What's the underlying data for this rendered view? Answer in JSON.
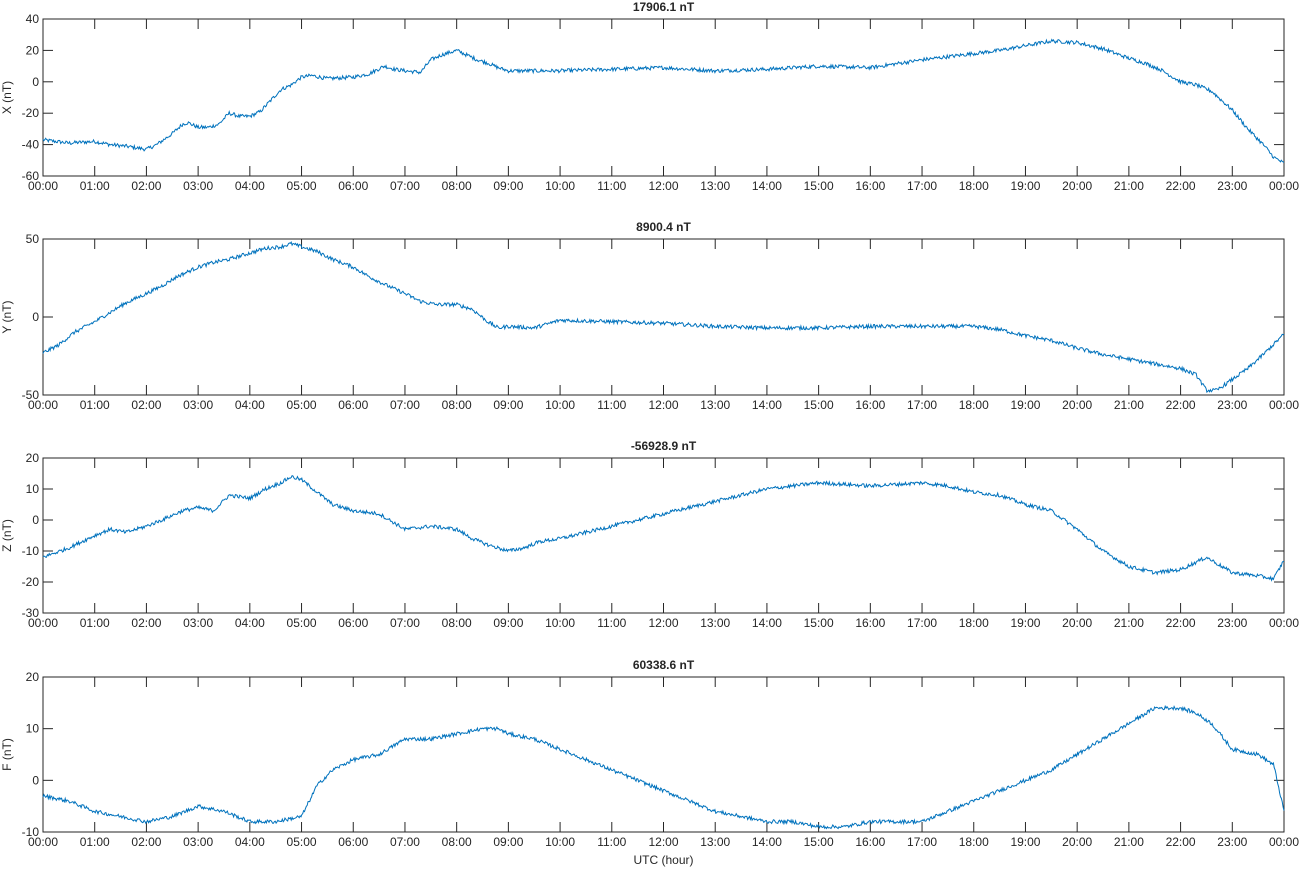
{
  "chart_data": [
    {
      "type": "line",
      "title": "17906.1 nT",
      "ylabel": "X (nT)",
      "xlabel": "",
      "ylim": [
        -60,
        40
      ],
      "yticks": [
        -60,
        -40,
        -20,
        0,
        20,
        40
      ],
      "xlim": [
        0,
        24
      ],
      "xticks": [
        "00:00",
        "01:00",
        "02:00",
        "03:00",
        "04:00",
        "05:00",
        "06:00",
        "07:00",
        "08:00",
        "09:00",
        "10:00",
        "11:00",
        "12:00",
        "13:00",
        "14:00",
        "15:00",
        "16:00",
        "17:00",
        "18:00",
        "19:00",
        "20:00",
        "21:00",
        "22:00",
        "23:00",
        "00:00"
      ],
      "grid": false,
      "color": "#0072bd",
      "series": [
        {
          "x": [
            0,
            0.5,
            1,
            1.3,
            1.6,
            2,
            2.2,
            2.5,
            2.7,
            2.8,
            3,
            3.2,
            3.4,
            3.6,
            3.8,
            4,
            4.2,
            4.4,
            4.6,
            4.8,
            5,
            5.2,
            5.5,
            6,
            6.3,
            6.6,
            6.8,
            7,
            7.3,
            7.5,
            7.7,
            8,
            8.2,
            8.4,
            8.6,
            8.8,
            9,
            9.5,
            10,
            11,
            12,
            13,
            14,
            15,
            16,
            17,
            18,
            18.5,
            19,
            19.5,
            20,
            20.5,
            21,
            21.3,
            21.6,
            22,
            22.3,
            22.6,
            23,
            23.3,
            23.6,
            23.8,
            24
          ],
          "y": [
            -37,
            -39,
            -38,
            -40,
            -41,
            -43,
            -40,
            -33,
            -27,
            -26,
            -29,
            -29,
            -27,
            -20,
            -22,
            -22,
            -19,
            -12,
            -5,
            -2,
            3,
            4,
            2,
            3,
            5,
            10,
            8,
            7,
            6,
            14,
            17,
            20,
            17,
            14,
            12,
            9,
            7,
            7,
            7,
            8,
            9,
            7,
            8,
            10,
            9,
            14,
            18,
            20,
            23,
            26,
            25,
            21,
            15,
            12,
            8,
            0,
            -2,
            -6,
            -18,
            -30,
            -40,
            -48,
            -52
          ]
        }
      ]
    },
    {
      "type": "line",
      "title": "8900.4 nT",
      "ylabel": "Y (nT)",
      "xlabel": "",
      "ylim": [
        -50,
        50
      ],
      "yticks": [
        -50,
        0,
        50
      ],
      "xlim": [
        0,
        24
      ],
      "xticks": [
        "00:00",
        "01:00",
        "02:00",
        "03:00",
        "04:00",
        "05:00",
        "06:00",
        "07:00",
        "08:00",
        "09:00",
        "10:00",
        "11:00",
        "12:00",
        "13:00",
        "14:00",
        "15:00",
        "16:00",
        "17:00",
        "18:00",
        "19:00",
        "20:00",
        "21:00",
        "22:00",
        "23:00",
        "00:00"
      ],
      "grid": false,
      "color": "#0072bd",
      "series": [
        {
          "x": [
            0,
            0.3,
            0.6,
            1,
            1.3,
            1.6,
            2,
            2.3,
            2.6,
            3,
            3.3,
            3.6,
            4,
            4.3,
            4.6,
            4.8,
            5,
            5.3,
            5.6,
            6,
            6.3,
            6.6,
            7,
            7.3,
            7.6,
            8,
            8.3,
            8.6,
            8.8,
            9,
            9.5,
            10,
            11,
            12,
            13,
            14,
            15,
            16,
            17,
            18,
            18.5,
            19,
            19.5,
            20,
            20.5,
            21,
            21.5,
            22,
            22.3,
            22.5,
            22.7,
            23,
            23.3,
            23.6,
            24
          ],
          "y": [
            -23,
            -18,
            -10,
            -3,
            3,
            9,
            15,
            20,
            26,
            32,
            35,
            37,
            41,
            44,
            45,
            47,
            45,
            42,
            37,
            32,
            26,
            21,
            15,
            10,
            8,
            8,
            5,
            -3,
            -7,
            -6,
            -7,
            -2,
            -3,
            -4,
            -6,
            -7,
            -7,
            -6,
            -6,
            -6,
            -8,
            -12,
            -15,
            -20,
            -24,
            -27,
            -30,
            -33,
            -37,
            -47,
            -47,
            -40,
            -33,
            -24,
            -11
          ]
        }
      ]
    },
    {
      "type": "line",
      "title": "-56928.9 nT",
      "ylabel": "Z (nT)",
      "xlabel": "",
      "ylim": [
        -30,
        20
      ],
      "yticks": [
        -30,
        -20,
        -10,
        0,
        10,
        20
      ],
      "xlim": [
        0,
        24
      ],
      "xticks": [
        "00:00",
        "01:00",
        "02:00",
        "03:00",
        "04:00",
        "05:00",
        "06:00",
        "07:00",
        "08:00",
        "09:00",
        "10:00",
        "11:00",
        "12:00",
        "13:00",
        "14:00",
        "15:00",
        "16:00",
        "17:00",
        "18:00",
        "19:00",
        "20:00",
        "21:00",
        "22:00",
        "23:00",
        "00:00"
      ],
      "grid": false,
      "color": "#0072bd",
      "series": [
        {
          "x": [
            0,
            0.5,
            1,
            1.3,
            1.6,
            2,
            2.3,
            2.7,
            3,
            3.3,
            3.6,
            4,
            4.3,
            4.6,
            4.8,
            5,
            5.3,
            5.6,
            6,
            6.5,
            7,
            7.5,
            8,
            8.3,
            8.6,
            9,
            9.3,
            9.6,
            10,
            11,
            12,
            13,
            14,
            15,
            16,
            17,
            17.5,
            18,
            18.5,
            19,
            19.5,
            20,
            20.5,
            21,
            21.5,
            22,
            22.5,
            23,
            23.5,
            23.8,
            24
          ],
          "y": [
            -12,
            -9,
            -5,
            -3,
            -4,
            -2,
            0,
            3,
            4,
            3,
            8,
            7,
            10,
            12,
            14,
            13,
            9,
            5,
            3,
            2,
            -3,
            -2,
            -3,
            -6,
            -8,
            -10,
            -9,
            -7,
            -6,
            -2,
            2,
            6,
            10,
            12,
            11,
            12,
            11,
            9,
            8,
            5,
            3,
            -3,
            -10,
            -15,
            -17,
            -16,
            -12,
            -17,
            -18,
            -19,
            -13
          ]
        }
      ]
    },
    {
      "type": "line",
      "title": "60338.6 nT",
      "ylabel": "F (nT)",
      "xlabel": "UTC (hour)",
      "ylim": [
        -10,
        20
      ],
      "yticks": [
        -10,
        0,
        10,
        20
      ],
      "xlim": [
        0,
        24
      ],
      "xticks": [
        "00:00",
        "01:00",
        "02:00",
        "03:00",
        "04:00",
        "05:00",
        "06:00",
        "07:00",
        "08:00",
        "09:00",
        "10:00",
        "11:00",
        "12:00",
        "13:00",
        "14:00",
        "15:00",
        "16:00",
        "17:00",
        "18:00",
        "19:00",
        "20:00",
        "21:00",
        "22:00",
        "23:00",
        "00:00"
      ],
      "grid": false,
      "color": "#0072bd",
      "series": [
        {
          "x": [
            0,
            0.5,
            1,
            1.5,
            2,
            2.5,
            3,
            3.5,
            4,
            4.5,
            5,
            5.3,
            5.6,
            6,
            6.5,
            7,
            7.5,
            8,
            8.5,
            8.8,
            9,
            9.5,
            10,
            10.5,
            11,
            11.5,
            12,
            12.5,
            13,
            13.5,
            14,
            14.5,
            15,
            15.5,
            16,
            16.5,
            17,
            17.5,
            18,
            18.5,
            19,
            19.5,
            20,
            20.5,
            21,
            21.5,
            22,
            22.3,
            22.6,
            23,
            23.5,
            23.8,
            24
          ],
          "y": [
            -3,
            -4,
            -6,
            -7,
            -8,
            -7,
            -5,
            -6,
            -8,
            -8,
            -7,
            -1,
            2,
            4,
            5,
            8,
            8,
            9,
            10,
            10,
            9,
            8,
            6,
            4,
            2,
            0,
            -2,
            -4,
            -6,
            -7,
            -8,
            -8,
            -9,
            -9,
            -8,
            -8,
            -8,
            -6,
            -4,
            -2,
            0,
            2,
            5,
            8,
            11,
            14,
            14,
            13,
            11,
            6,
            5,
            3,
            -6
          ]
        }
      ]
    }
  ]
}
